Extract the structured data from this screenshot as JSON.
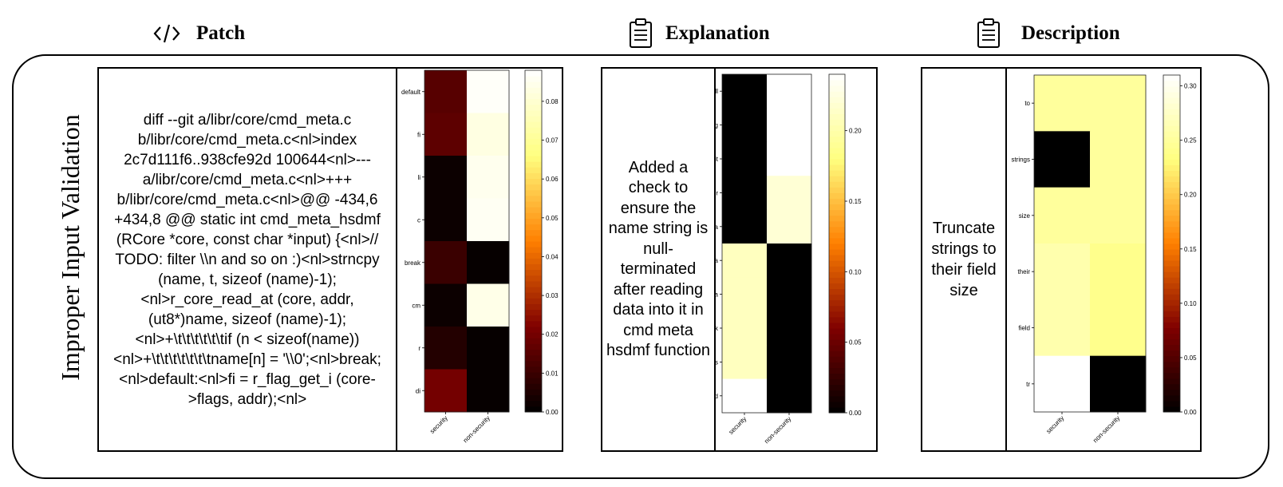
{
  "headers": {
    "patch": {
      "label": "Patch",
      "icon": "code-icon"
    },
    "explanation": {
      "label": "Explanation",
      "icon": "clipboard-icon"
    },
    "description": {
      "label": "Description",
      "icon": "clipboard-icon"
    }
  },
  "row_label": "Improper Input Validation",
  "patch_text": "diff --git a/libr/core/cmd_meta.c b/libr/core/cmd_meta.c<nl>index 2c7d111f6..938cfe92d 100644<nl>--- a/libr/core/cmd_meta.c<nl>+++ b/libr/core/cmd_meta.c<nl>@@ -434,6 +434,8 @@ static int cmd_meta_hsdmf (RCore *core, const char *input) {<nl>// TODO: filter \\\\n and so on :)<nl>strncpy (name, t, sizeof (name)-1);<nl>r_core_read_at (core, addr, (ut8*)name, sizeof (name)-1);<nl>+\\t\\t\\t\\t\\t\\tif (n < sizeof(name))<nl>+\\t\\t\\t\\t\\t\\t\\tname[n] = '\\\\0';<nl>break;<nl>default:<nl>fi = r_flag_get_i (core->flags, addr);<nl>",
  "explanation_text": "Added a check to ensure the name string is null-terminated after reading data into it in cmd meta hsdmf function",
  "description_text": "Truncate strings to their field size",
  "chart_data": [
    {
      "type": "heatmap",
      "name": "patch",
      "rows": [
        "default",
        "fi",
        "li",
        "c",
        "break",
        "cm",
        "r",
        "di"
      ],
      "cols": [
        "security",
        "non-security"
      ],
      "values": [
        [
          0.015,
          0.087
        ],
        [
          0.016,
          0.083
        ],
        [
          0.002,
          0.085
        ],
        [
          0.002,
          0.086
        ],
        [
          0.01,
          0.001
        ],
        [
          0.002,
          0.084
        ],
        [
          0.006,
          0.001
        ],
        [
          0.02,
          0.001
        ]
      ],
      "colorbar_ticks": [
        "0.00",
        "0.01",
        "0.02",
        "0.03",
        "0.04",
        "0.05",
        "0.06",
        "0.07",
        "0.08"
      ],
      "vmin": 0,
      "vmax": 0.088
    },
    {
      "type": "heatmap",
      "name": "explanation",
      "rows": [
        "null",
        "reading",
        "it",
        "after",
        "data",
        "meta",
        "a",
        "check",
        "hs",
        "added"
      ],
      "cols": [
        "security",
        "non-security"
      ],
      "values": [
        [
          0.0,
          0.24
        ],
        [
          0.0,
          0.24
        ],
        [
          0.0,
          0.24
        ],
        [
          0.0,
          0.22
        ],
        [
          0.0,
          0.22
        ],
        [
          0.21,
          0.0
        ],
        [
          0.21,
          0.0
        ],
        [
          0.21,
          0.0
        ],
        [
          0.21,
          0.0
        ],
        [
          0.24,
          0.0
        ]
      ],
      "colorbar_ticks": [
        "0.00",
        "0.05",
        "0.10",
        "0.15",
        "0.20"
      ],
      "vmin": 0,
      "vmax": 0.24
    },
    {
      "type": "heatmap",
      "name": "description",
      "rows": [
        "to",
        "strings",
        "size",
        "their",
        "field",
        "tr"
      ],
      "cols": [
        "security",
        "non-security"
      ],
      "values": [
        [
          0.25,
          0.25
        ],
        [
          0.0,
          0.25
        ],
        [
          0.25,
          0.25
        ],
        [
          0.26,
          0.24
        ],
        [
          0.26,
          0.24
        ],
        [
          0.31,
          0.0
        ]
      ],
      "colorbar_ticks": [
        "0.00",
        "0.05",
        "0.10",
        "0.15",
        "0.20",
        "0.25",
        "0.30"
      ],
      "vmin": 0,
      "vmax": 0.31
    }
  ]
}
